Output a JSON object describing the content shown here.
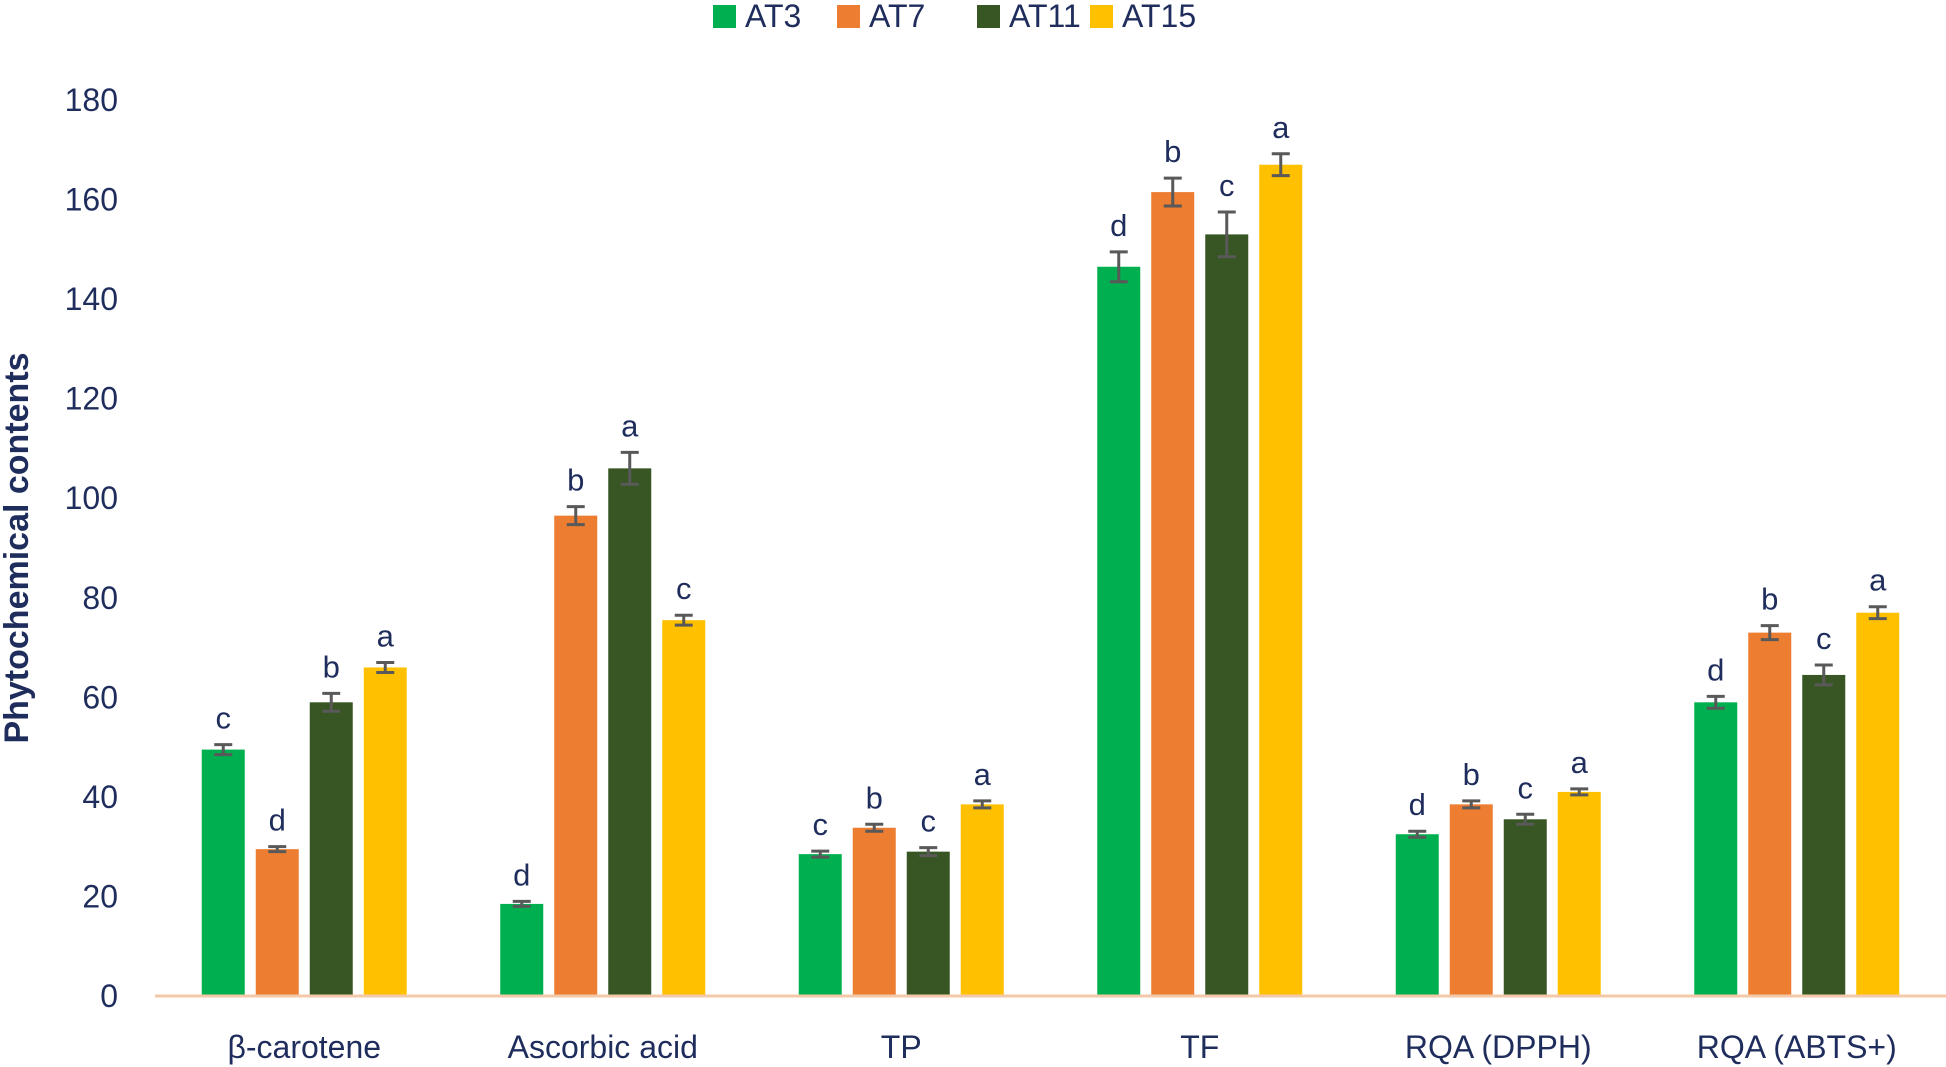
{
  "chart_data": {
    "type": "bar",
    "ylabel": "Phytochemical contents",
    "ylim": [
      0,
      180
    ],
    "yticks": [
      0,
      20,
      40,
      60,
      80,
      100,
      120,
      140,
      160,
      180
    ],
    "grid": false,
    "legend_position": "top-center",
    "categories": [
      "β-carotene",
      "Ascorbic acid",
      "TP",
      "TF",
      "RQA (DPPH)",
      "RQA (ABTS+)"
    ],
    "series": [
      {
        "name": "AT3",
        "color": "#00b050",
        "values": [
          49.5,
          18.5,
          28.5,
          146.5,
          32.5,
          59
        ],
        "errors": [
          1.0,
          0.5,
          0.6,
          3.0,
          0.6,
          1.2
        ],
        "letters": [
          "c",
          "d",
          "c",
          "d",
          "d",
          "d"
        ]
      },
      {
        "name": "AT7",
        "color": "#ed7d31",
        "values": [
          29.5,
          96.5,
          33.8,
          161.5,
          38.5,
          73
        ],
        "errors": [
          0.5,
          1.8,
          0.7,
          2.8,
          0.7,
          1.4
        ],
        "letters": [
          "d",
          "b",
          "b",
          "b",
          "b",
          "b"
        ]
      },
      {
        "name": "AT11",
        "color": "#375623",
        "values": [
          59,
          106,
          29,
          153,
          35.5,
          64.5
        ],
        "errors": [
          1.8,
          3.2,
          0.8,
          4.5,
          1.0,
          2.0
        ],
        "letters": [
          "b",
          "a",
          "c",
          "c",
          "c",
          "c"
        ]
      },
      {
        "name": "AT15",
        "color": "#ffc000",
        "values": [
          66,
          75.5,
          38.5,
          167,
          41,
          77
        ],
        "errors": [
          1.0,
          1.0,
          0.7,
          2.2,
          0.6,
          1.2
        ],
        "letters": [
          "a",
          "c",
          "a",
          "a",
          "a",
          "a"
        ]
      }
    ],
    "colors": {
      "text": "#1f2d5c",
      "axis": "#f3c9a9",
      "error_bar": "#595959"
    }
  }
}
